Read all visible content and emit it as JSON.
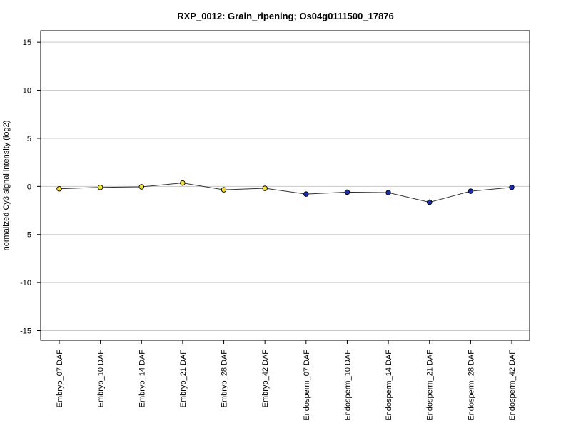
{
  "chart_data": {
    "type": "line",
    "title": "RXP_0012: Grain_ripening; Os04g0111500_17876",
    "xlabel": "",
    "ylabel": "normalized Cy3 signal intensity (log2)",
    "ylim": [
      -16,
      16.2
    ],
    "yticks": [
      15,
      10,
      5,
      0,
      -5,
      -10,
      -15
    ],
    "grid": true,
    "categories": [
      "Embryo_07 DAF",
      "Embryo_10 DAF",
      "Embryo_14 DAF",
      "Embryo_21 DAF",
      "Embryo_28 DAF",
      "Embryo_42 DAF",
      "Endosperm_07 DAF",
      "Endosperm_10 DAF",
      "Endosperm_14 DAF",
      "Endosperm_21 DAF",
      "Endosperm_28 DAF",
      "Endosperm_42 DAF"
    ],
    "values": [
      -0.25,
      -0.1,
      -0.05,
      0.35,
      -0.35,
      -0.2,
      -0.8,
      -0.6,
      -0.65,
      -1.65,
      -0.5,
      -0.1
    ],
    "errors": [
      0.1,
      0.15,
      0.1,
      0.1,
      0.1,
      0.15,
      0.1,
      0.1,
      0.1,
      0.3,
      0.1,
      0.1
    ],
    "point_colors": [
      "#f2e235",
      "#f2e235",
      "#f2e235",
      "#f2e235",
      "#f2e235",
      "#f2e235",
      "#1a2cb0",
      "#1a2cb0",
      "#1a2cb0",
      "#1a2cb0",
      "#1a2cb0",
      "#1a2cb0"
    ],
    "line_color": "#333333",
    "grid_color": "#c8c8c8"
  }
}
